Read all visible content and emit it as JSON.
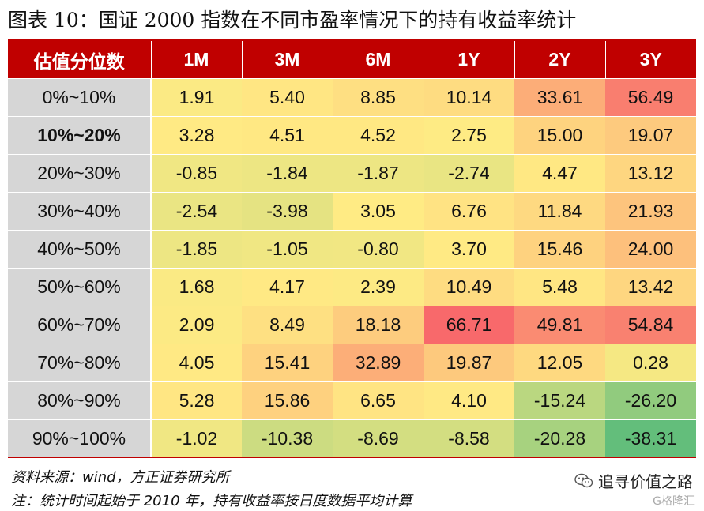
{
  "title": "图表 10：国证 2000 指数在不同市盈率情况下的持有收益率统计",
  "source": "资料来源：wind，方正证券研究所",
  "note": "注：统计时间起始于 2010 年，持有收益率按日度数据平均计算",
  "watermark": "追寻价值之路",
  "watermark2": "G格隆汇",
  "colors": {
    "header_bg": "#c00000",
    "row_label_bg": "#d6d6d6",
    "low": "#63be7b",
    "mid": "#ffeb84",
    "high": "#f8696b"
  },
  "chart_data": {
    "type": "heatmap",
    "corner_label": "估值分位数",
    "columns": [
      "1M",
      "3M",
      "6M",
      "1Y",
      "2Y",
      "3Y"
    ],
    "rows": [
      "0%~10%",
      "10%~20%",
      "20%~30%",
      "30%~40%",
      "40%~50%",
      "50%~60%",
      "60%~70%",
      "70%~80%",
      "80%~90%",
      "90%~100%"
    ],
    "bold_row": "10%~20%",
    "values": [
      [
        "1.91",
        "5.40",
        "8.85",
        "10.14",
        "33.61",
        "56.49"
      ],
      [
        "3.28",
        "4.51",
        "4.52",
        "2.75",
        "15.00",
        "19.07"
      ],
      [
        "-0.85",
        "-1.84",
        "-1.87",
        "-2.74",
        "4.47",
        "13.12"
      ],
      [
        "-2.54",
        "-3.98",
        "3.05",
        "6.76",
        "11.84",
        "21.93"
      ],
      [
        "-1.85",
        "-1.05",
        "-0.80",
        "3.70",
        "15.46",
        "24.00"
      ],
      [
        "1.68",
        "4.17",
        "2.39",
        "10.49",
        "5.48",
        "13.42"
      ],
      [
        "2.09",
        "8.49",
        "18.18",
        "66.71",
        "49.81",
        "54.84"
      ],
      [
        "4.05",
        "15.41",
        "32.89",
        "19.87",
        "12.05",
        "0.28"
      ],
      [
        "5.28",
        "15.86",
        "6.65",
        "4.10",
        "-15.24",
        "-26.20"
      ],
      [
        "-1.02",
        "-10.38",
        "-8.69",
        "-8.58",
        "-20.28",
        "-38.31"
      ]
    ],
    "color_scale": {
      "min": -38.31,
      "mid": 3.0,
      "max": 66.71
    }
  }
}
